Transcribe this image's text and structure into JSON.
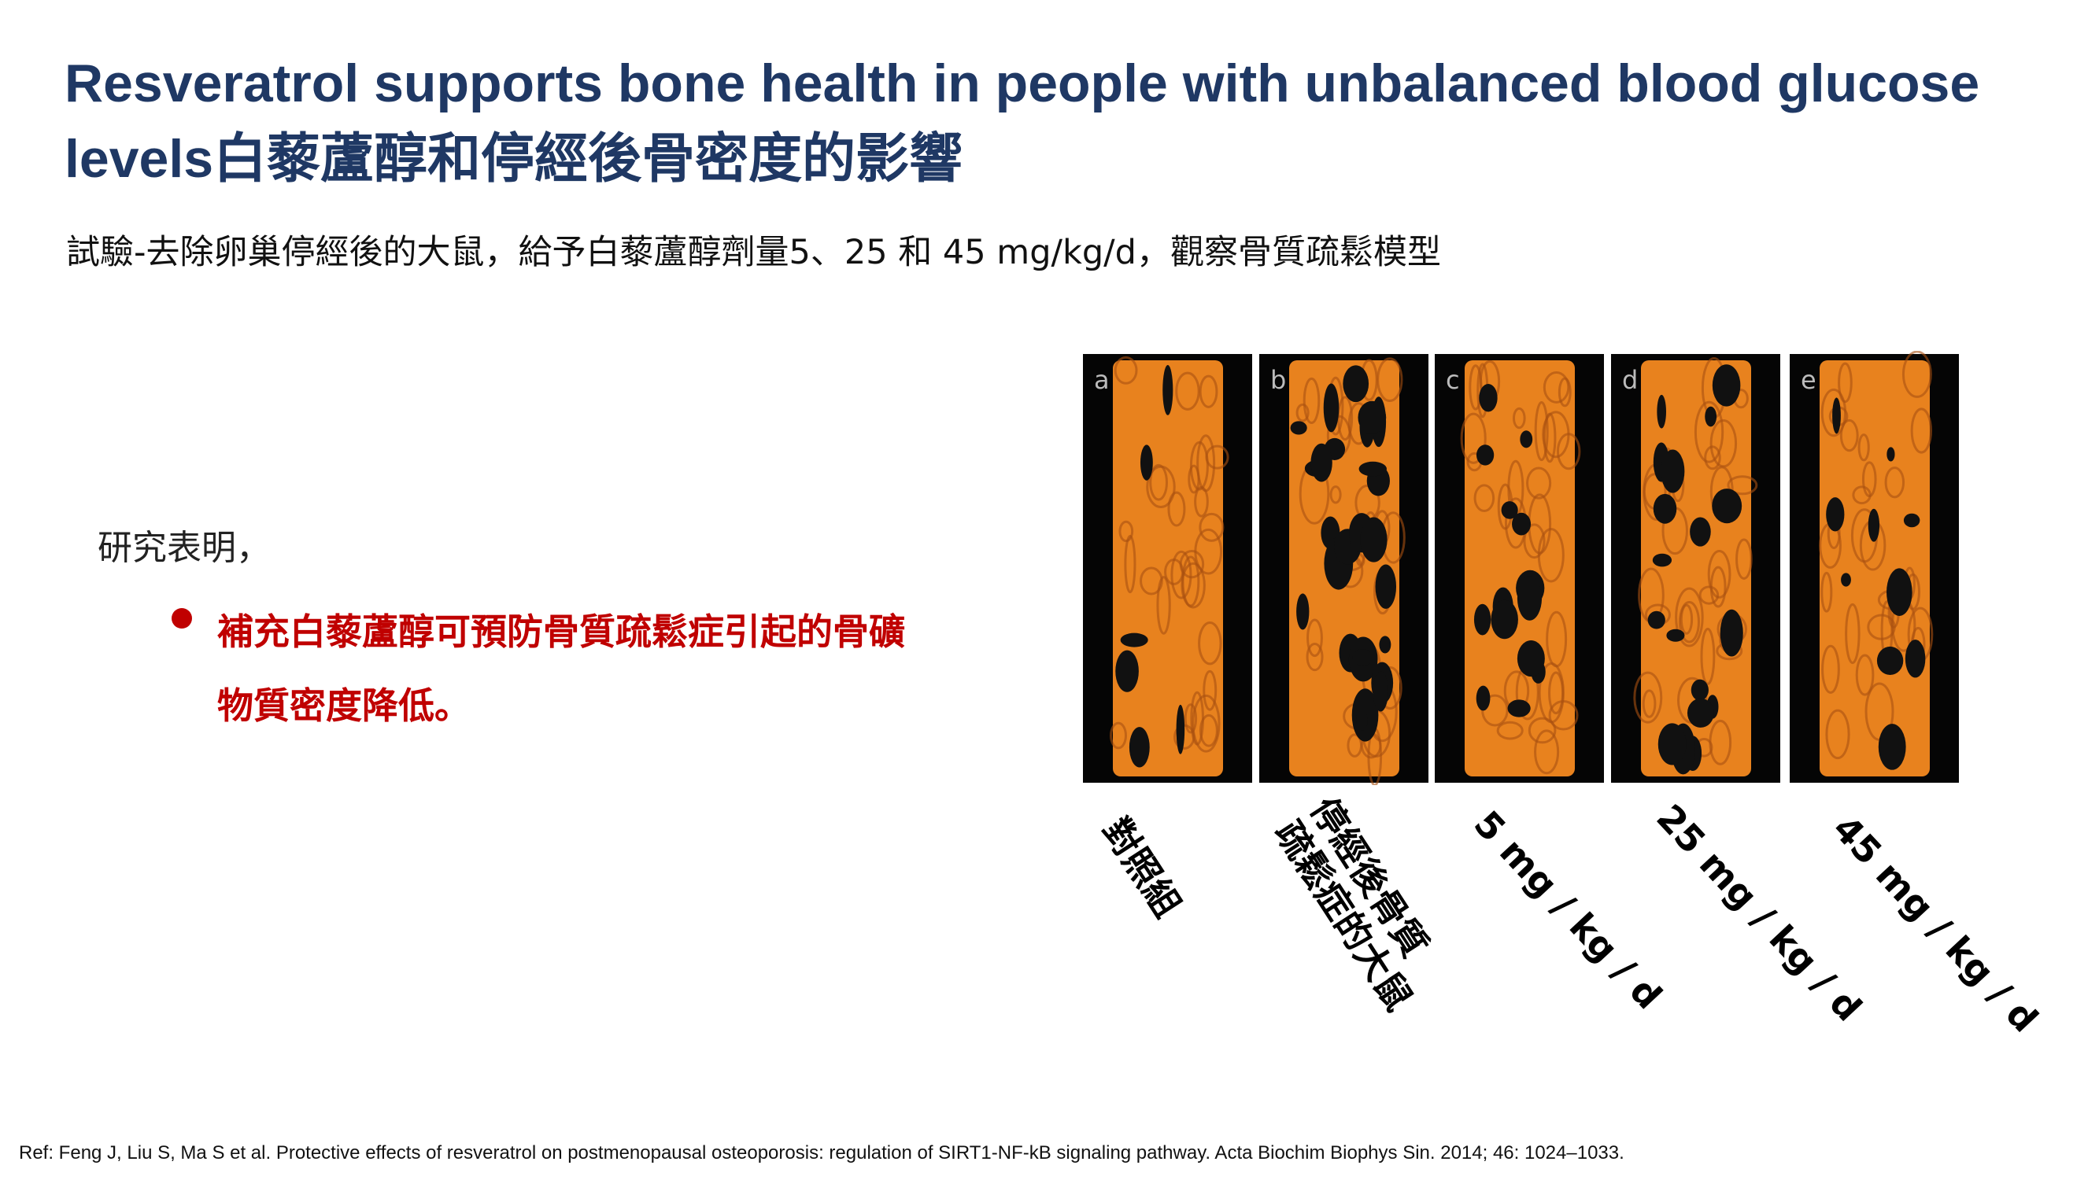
{
  "title": [
    "Resveratrol supports bone health in people with unbalanced blood glucose",
    "levels白藜蘆醇和停經後骨密度的影響"
  ],
  "subtitle": "試驗-去除卵巢停經後的大鼠，給予白藜蘆醇劑量5、25 和 45 mg/kg/d，觀察骨質疏鬆模型",
  "intro": "研究表明，",
  "bullet": [
    "補充白藜蘆醇可預防骨質疏鬆症引起的骨礦",
    "物質密度降低。"
  ],
  "figure": {
    "panels": [
      {
        "letter": "a",
        "label": [
          "對照組"
        ]
      },
      {
        "letter": "b",
        "label": [
          "停經後骨質",
          "疏鬆症的大鼠"
        ]
      },
      {
        "letter": "c",
        "label": [
          "5 mg / kg / d"
        ]
      },
      {
        "letter": "d",
        "label": [
          "25 mg / kg / d"
        ]
      },
      {
        "letter": "e",
        "label": [
          "45 mg / kg / d"
        ]
      }
    ]
  },
  "reference": "Ref: Feng J, Liu S, Ma S et al. Protective effects of resveratrol on postmenopausal osteoporosis: regulation of SIRT1-NF-kB signaling pathway. Acta Biochim Biophys Sin. 2014; 46: 1024–1033."
}
